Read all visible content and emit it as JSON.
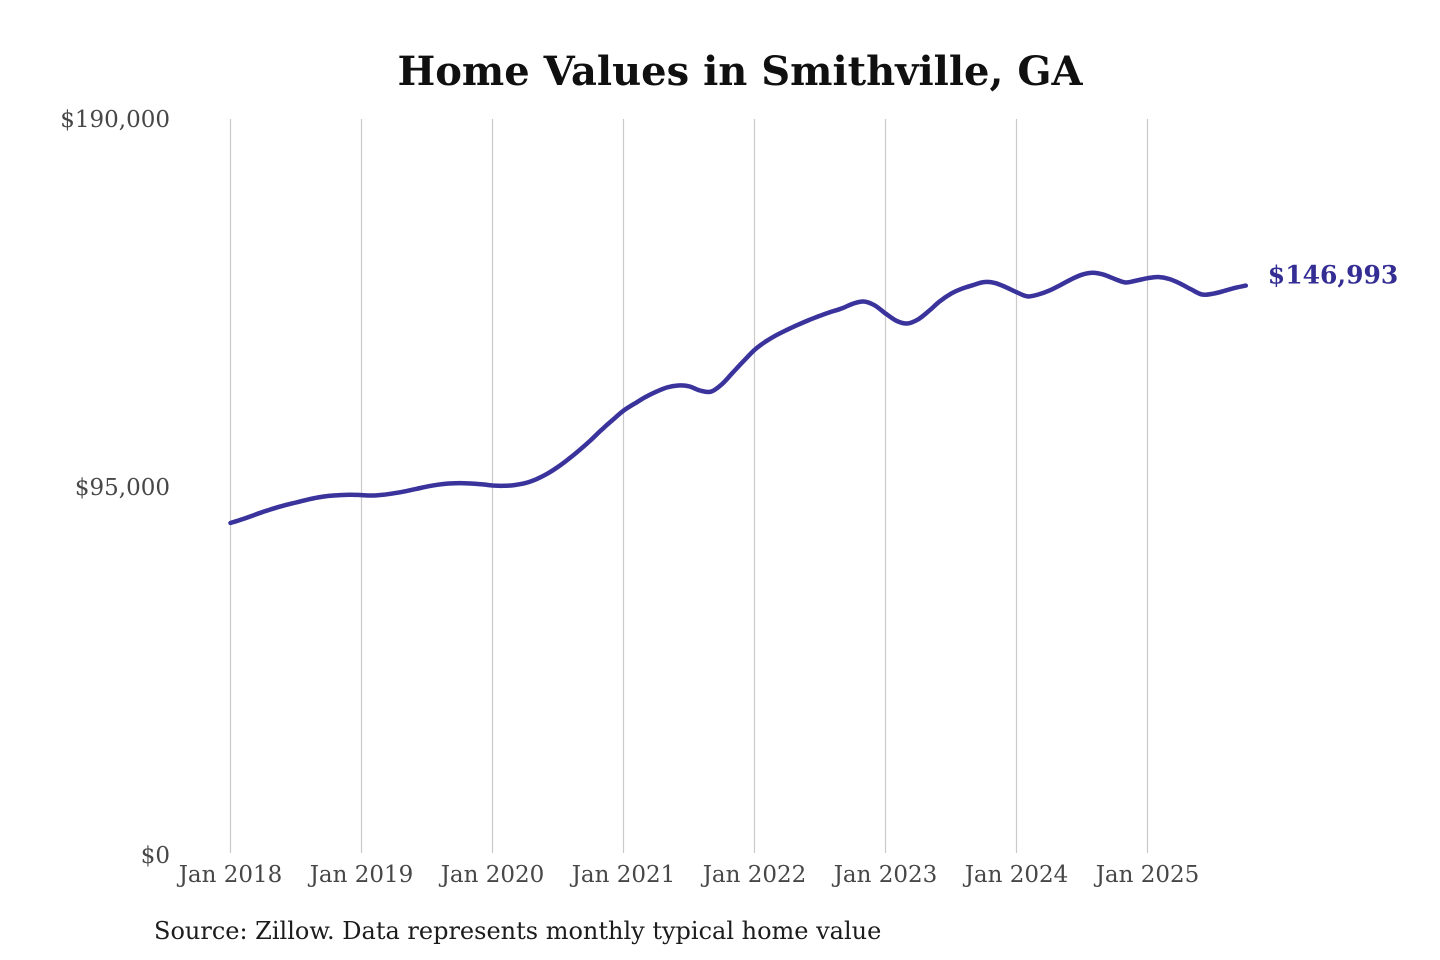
{
  "title": "Home Values in Smithville, GA",
  "source_note": "Source: Zillow. Data represents monthly typical home value",
  "latest_value_label": "$146,993",
  "colors": {
    "line": "#3A339C",
    "latest_label": "#342E94",
    "grid": "#C9C9C9",
    "tick_text": "#474747",
    "title_text": "#101010",
    "source_text": "#1C1C1C"
  },
  "y_axis": {
    "ticks": [
      {
        "label": "$190,000",
        "value": 190000
      },
      {
        "label": "$95,000",
        "value": 95000
      },
      {
        "label": "$0",
        "value": 0
      }
    ]
  },
  "x_axis": {
    "ticks": [
      {
        "label": "Jan 2018",
        "month_index": 0
      },
      {
        "label": "Jan 2019",
        "month_index": 12
      },
      {
        "label": "Jan 2020",
        "month_index": 24
      },
      {
        "label": "Jan 2021",
        "month_index": 36
      },
      {
        "label": "Jan 2022",
        "month_index": 48
      },
      {
        "label": "Jan 2023",
        "month_index": 60
      },
      {
        "label": "Jan 2024",
        "month_index": 72
      },
      {
        "label": "Jan 2025",
        "month_index": 84
      }
    ]
  },
  "chart_data": {
    "type": "line",
    "series_name": "Monthly typical home value (USD)",
    "cadence": "monthly",
    "start_month": "Jan 2018",
    "end_month": "Oct 2025",
    "ylim": [
      0,
      190000
    ],
    "latest_value": 146993,
    "values": [
      85700,
      86600,
      87600,
      88600,
      89500,
      90300,
      91000,
      91700,
      92300,
      92700,
      92900,
      93000,
      92900,
      92800,
      93000,
      93400,
      93900,
      94500,
      95100,
      95600,
      95900,
      96000,
      95900,
      95700,
      95400,
      95300,
      95500,
      96000,
      97000,
      98400,
      100200,
      102300,
      104600,
      107100,
      109800,
      112300,
      114700,
      116500,
      118200,
      119600,
      120700,
      121200,
      121000,
      119900,
      119600,
      121500,
      124500,
      127500,
      130400,
      132500,
      134200,
      135600,
      136900,
      138100,
      139200,
      140200,
      141100,
      142300,
      142900,
      141900,
      139800,
      137900,
      137200,
      138300,
      140500,
      143000,
      144900,
      146200,
      147100,
      147900,
      147700,
      146600,
      145300,
      144200,
      144700,
      145700,
      147100,
      148600,
      149800,
      150300,
      149800,
      148700,
      147800,
      148300,
      148900,
      149200,
      148700,
      147500,
      146000,
      144700,
      144900,
      145600,
      146400,
      146993
    ]
  }
}
